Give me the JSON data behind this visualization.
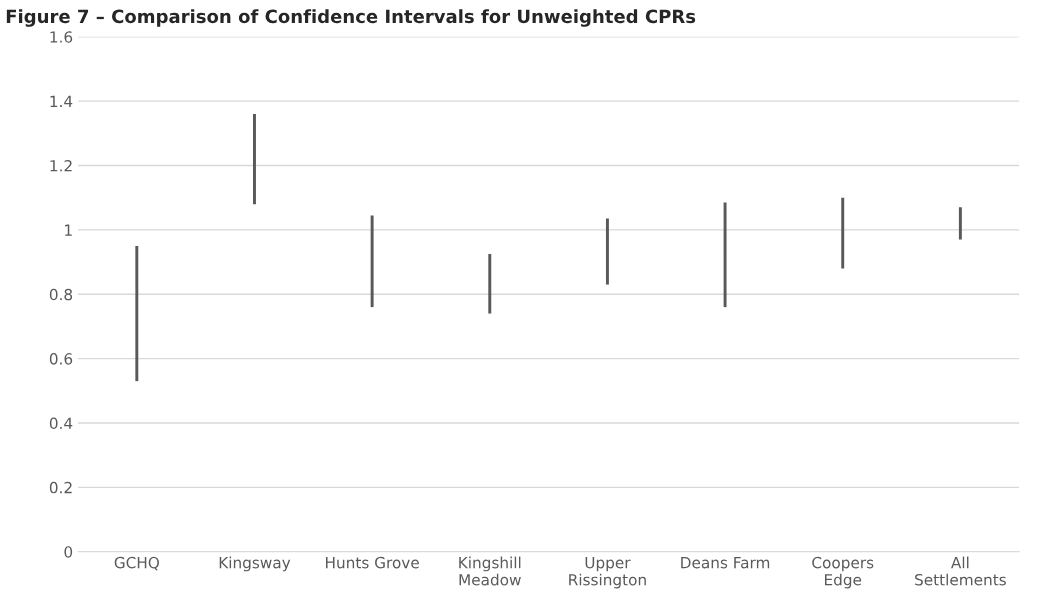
{
  "chart_data": {
    "type": "bar",
    "title": "Figure 7 – Comparison of Confidence Intervals for Unweighted CPRs",
    "categories": [
      "GCHQ",
      "Kingsway",
      "Hunts Grove",
      "Kingshill\nMeadow",
      "Upper\nRissington",
      "Deans Farm",
      "Coopers\nEdge",
      "All\nSettlements"
    ],
    "base": [
      0.53,
      1.08,
      0.76,
      0.74,
      0.83,
      0.76,
      0.88,
      0.97
    ],
    "values": [
      0.42,
      0.28,
      0.285,
      0.185,
      0.205,
      0.325,
      0.22,
      0.1
    ],
    "color": "#595959",
    "ylim": [
      0,
      1.6
    ],
    "yticks": [
      0,
      0.2,
      0.4,
      0.6,
      0.8,
      1,
      1.2,
      1.4,
      1.6
    ],
    "grid": "y"
  }
}
